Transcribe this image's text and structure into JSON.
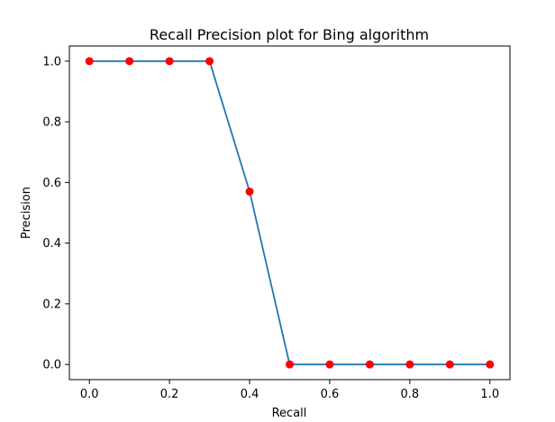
{
  "chart_data": {
    "type": "line",
    "title": "Recall Precision plot for Bing algorithm",
    "xlabel": "Recall",
    "ylabel": "Precision",
    "xlim": [
      -0.05,
      1.05
    ],
    "ylim": [
      -0.05,
      1.05
    ],
    "x_ticks": [
      0.0,
      0.2,
      0.4,
      0.6,
      0.8,
      1.0
    ],
    "y_ticks": [
      0.0,
      0.2,
      0.4,
      0.6,
      0.8,
      1.0
    ],
    "x_tick_labels": [
      "0.0",
      "0.2",
      "0.4",
      "0.6",
      "0.8",
      "1.0"
    ],
    "y_tick_labels": [
      "0.0",
      "0.2",
      "0.4",
      "0.6",
      "0.8",
      "1.0"
    ],
    "grid": false,
    "series": [
      {
        "x": [
          0.0,
          0.1,
          0.2,
          0.3,
          0.4,
          0.5,
          0.6,
          0.7,
          0.8,
          0.9,
          1.0
        ],
        "y": [
          1.0,
          1.0,
          1.0,
          1.0,
          0.57,
          0.0,
          0.0,
          0.0,
          0.0,
          0.0,
          0.0
        ],
        "line_color": "#1f77b4",
        "marker_color": "#ff0000"
      }
    ]
  }
}
